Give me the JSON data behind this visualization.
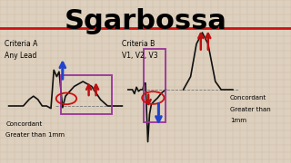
{
  "title": "Sgarbossa",
  "title_fontsize": 22,
  "title_fontweight": "bold",
  "bg_color": "#ddd0be",
  "grid_color": "#c8b8a0",
  "label_a_line1": "Criteria A",
  "label_a_line2": "Any Lead",
  "label_b_line1": "Criteria B",
  "label_b_line2": "V1, V2, V3",
  "label_concordant_left_line1": "Concordant",
  "label_concordant_left_line2": "Greater than 1mm",
  "label_concordant_right_line1": "Concordant",
  "label_concordant_right_line2": "Greater than",
  "label_concordant_right_line3": "1mm",
  "red_line_y": 0.175,
  "ecg_line_color": "#111111",
  "arrow_blue": "#2244cc",
  "arrow_red": "#bb1111",
  "circle_color": "#cc1111",
  "box_color": "#993399",
  "dashed_line_color": "#777777",
  "text_fontsize": 5.5,
  "conc_fontsize": 5.0
}
